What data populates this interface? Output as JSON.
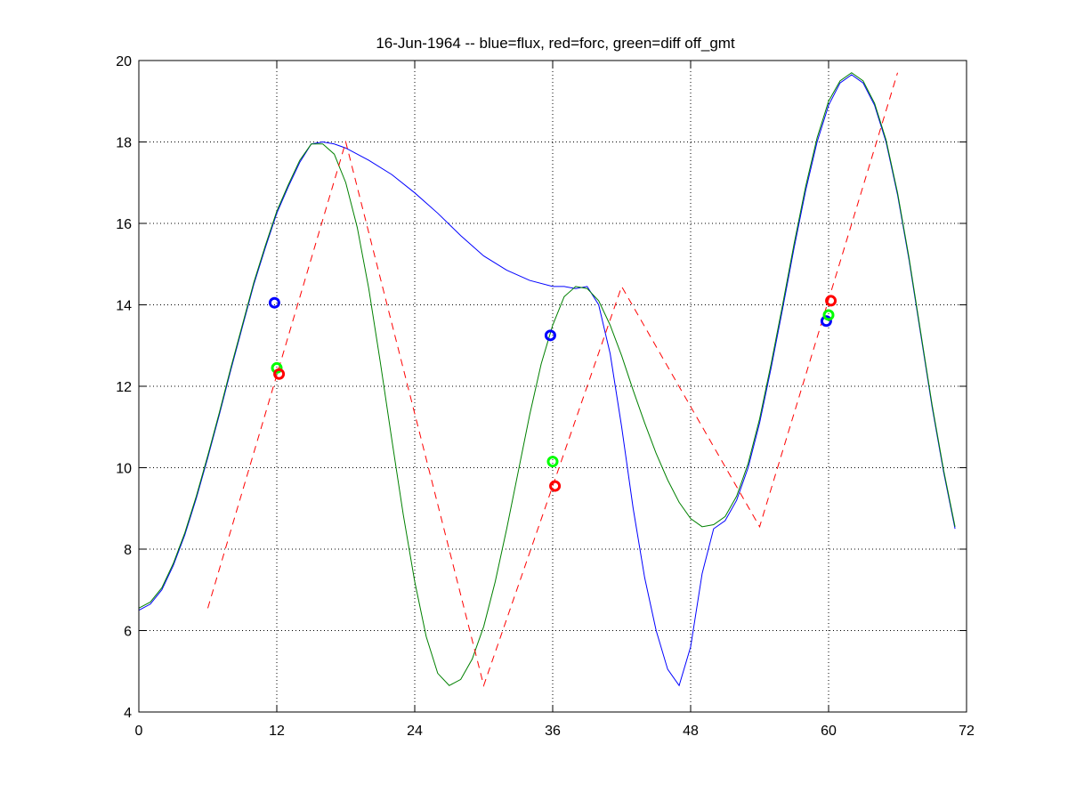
{
  "chart_data": {
    "type": "line",
    "title": "16-Jun-1964 -- blue=flux, red=forc, green=diff off_gmt",
    "xlabel": "",
    "ylabel": "",
    "xlim": [
      0,
      72
    ],
    "ylim": [
      4,
      20
    ],
    "xticks": [
      0,
      12,
      24,
      36,
      48,
      60,
      72
    ],
    "yticks": [
      4,
      6,
      8,
      10,
      12,
      14,
      16,
      18,
      20
    ],
    "grid": true,
    "grid_style": "dotted",
    "series": [
      {
        "color": "#0000ff",
        "style": "solid",
        "x": [
          0,
          1,
          2,
          3,
          4,
          5,
          6,
          7,
          8,
          9,
          10,
          11,
          12,
          13,
          14,
          15,
          16,
          17,
          18,
          20,
          22,
          24,
          26,
          28,
          30,
          32,
          34,
          36,
          37,
          38,
          39,
          40,
          41,
          42,
          43,
          44,
          45,
          46,
          47,
          48,
          49,
          50,
          51,
          52,
          53,
          54,
          55,
          56,
          57,
          58,
          59,
          60,
          61,
          62,
          63,
          64,
          65,
          66,
          67,
          68,
          69,
          70,
          71
        ],
        "y": [
          6.5,
          6.65,
          7.0,
          7.6,
          8.35,
          9.25,
          10.25,
          11.3,
          12.4,
          13.45,
          14.5,
          15.4,
          16.25,
          16.9,
          17.5,
          17.95,
          18.0,
          17.95,
          17.85,
          17.55,
          17.2,
          16.75,
          16.25,
          15.7,
          15.2,
          14.85,
          14.6,
          14.45,
          14.45,
          14.4,
          14.45,
          14.0,
          12.8,
          11.0,
          9.0,
          7.3,
          6.0,
          5.05,
          4.65,
          5.6,
          7.4,
          8.5,
          8.7,
          9.2,
          10.0,
          11.1,
          12.45,
          13.9,
          15.4,
          16.8,
          18.0,
          18.9,
          19.45,
          19.65,
          19.45,
          18.9,
          18.0,
          16.7,
          15.1,
          13.3,
          11.5,
          9.9,
          8.5
        ]
      },
      {
        "color": "#008000",
        "style": "solid",
        "x": [
          0,
          1,
          2,
          3,
          4,
          5,
          6,
          7,
          8,
          9,
          10,
          11,
          12,
          13,
          14,
          15,
          16,
          17,
          18,
          19,
          20,
          21,
          22,
          23,
          24,
          25,
          26,
          27,
          28,
          29,
          30,
          31,
          32,
          33,
          34,
          35,
          36,
          37,
          38,
          39,
          40,
          41,
          42,
          43,
          44,
          45,
          46,
          47,
          48,
          49,
          50,
          51,
          52,
          53,
          54,
          55,
          56,
          57,
          58,
          59,
          60,
          61,
          62,
          63,
          64,
          65,
          66,
          67,
          68,
          69,
          70,
          71
        ],
        "y": [
          6.55,
          6.7,
          7.05,
          7.65,
          8.4,
          9.3,
          10.3,
          11.35,
          12.45,
          13.5,
          14.55,
          15.45,
          16.3,
          16.95,
          17.55,
          17.95,
          17.95,
          17.7,
          17.0,
          15.9,
          14.4,
          12.6,
          10.7,
          8.85,
          7.2,
          5.85,
          4.95,
          4.65,
          4.8,
          5.3,
          6.1,
          7.2,
          8.5,
          9.9,
          11.3,
          12.55,
          13.5,
          14.2,
          14.45,
          14.4,
          14.1,
          13.5,
          12.75,
          11.9,
          11.1,
          10.35,
          9.7,
          9.15,
          8.75,
          8.55,
          8.6,
          8.8,
          9.3,
          10.1,
          11.2,
          12.55,
          14.0,
          15.5,
          16.9,
          18.1,
          19.0,
          19.5,
          19.7,
          19.5,
          18.95,
          18.05,
          16.75,
          15.15,
          13.35,
          11.55,
          9.95,
          8.55
        ]
      },
      {
        "color": "#ff0000",
        "style": "dashed",
        "x": [
          6,
          18,
          30,
          42,
          54,
          66
        ],
        "y": [
          6.55,
          18.0,
          4.65,
          14.45,
          8.55,
          19.7
        ]
      }
    ],
    "markers": [
      {
        "color": "#0000ff",
        "x": 11.8,
        "y": 14.05
      },
      {
        "color": "#00ff00",
        "x": 12.0,
        "y": 12.45
      },
      {
        "color": "#ff0000",
        "x": 12.2,
        "y": 12.3
      },
      {
        "color": "#0000ff",
        "x": 35.8,
        "y": 13.25
      },
      {
        "color": "#00ff00",
        "x": 36.0,
        "y": 10.15
      },
      {
        "color": "#ff0000",
        "x": 36.2,
        "y": 9.55
      },
      {
        "color": "#0000ff",
        "x": 59.8,
        "y": 13.6
      },
      {
        "color": "#00ff00",
        "x": 60.0,
        "y": 13.75
      },
      {
        "color": "#ff0000",
        "x": 60.2,
        "y": 14.1
      }
    ]
  }
}
